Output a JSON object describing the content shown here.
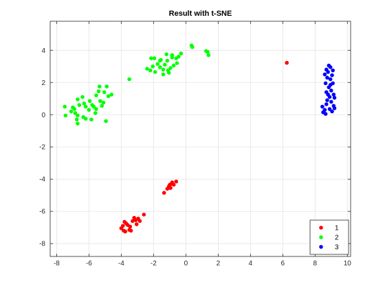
{
  "chart_data": {
    "type": "scatter",
    "title": "Result with t-SNE",
    "xlabel": "",
    "ylabel": "",
    "xlim": [
      -8.4,
      10.2
    ],
    "ylim": [
      -8.8,
      5.8
    ],
    "xticks": [
      -8,
      -6,
      -4,
      -2,
      0,
      2,
      4,
      6,
      8,
      10
    ],
    "yticks": [
      -8,
      -6,
      -4,
      -2,
      0,
      2,
      4
    ],
    "grid": true,
    "legend_position": "bottom-right",
    "series": [
      {
        "name": "1",
        "color": "#ff0000",
        "points": [
          [
            6.25,
            3.22
          ],
          [
            -1.35,
            -4.85
          ],
          [
            -1.15,
            -4.6
          ],
          [
            -1.05,
            -4.45
          ],
          [
            -0.95,
            -4.55
          ],
          [
            -0.9,
            -4.3
          ],
          [
            -0.85,
            -4.2
          ],
          [
            -0.75,
            -4.35
          ],
          [
            -0.6,
            -4.15
          ],
          [
            -1.0,
            -4.35
          ],
          [
            -2.6,
            -6.2
          ],
          [
            -2.95,
            -6.45
          ],
          [
            -3.1,
            -6.55
          ],
          [
            -3.2,
            -6.4
          ],
          [
            -3.3,
            -6.6
          ],
          [
            -3.05,
            -6.8
          ],
          [
            -3.45,
            -6.95
          ],
          [
            -3.5,
            -7.15
          ],
          [
            -3.4,
            -7.2
          ],
          [
            -3.7,
            -6.75
          ],
          [
            -3.8,
            -6.65
          ],
          [
            -3.9,
            -6.9
          ],
          [
            -4.0,
            -7.05
          ],
          [
            -3.85,
            -7.2
          ],
          [
            -3.75,
            -7.25
          ],
          [
            -3.6,
            -6.85
          ],
          [
            -2.85,
            -6.6
          ]
        ]
      },
      {
        "name": "2",
        "color": "#00ff00",
        "points": [
          [
            -7.5,
            0.5
          ],
          [
            -7.45,
            -0.05
          ],
          [
            -7.1,
            0.2
          ],
          [
            -7.0,
            0.45
          ],
          [
            -6.9,
            0.35
          ],
          [
            -6.85,
            0.1
          ],
          [
            -6.7,
            -0.05
          ],
          [
            -6.75,
            -0.3
          ],
          [
            -6.7,
            -0.55
          ],
          [
            -6.6,
            0.6
          ],
          [
            -6.7,
            0.95
          ],
          [
            -6.4,
            1.1
          ],
          [
            -6.3,
            0.7
          ],
          [
            -6.2,
            0.5
          ],
          [
            -6.35,
            -0.15
          ],
          [
            -6.2,
            -0.25
          ],
          [
            -6.0,
            0.3
          ],
          [
            -5.95,
            0.85
          ],
          [
            -5.85,
            -0.3
          ],
          [
            -5.8,
            0.6
          ],
          [
            -5.7,
            0.5
          ],
          [
            -5.6,
            0.1
          ],
          [
            -5.55,
            0.35
          ],
          [
            -5.55,
            1.2
          ],
          [
            -5.4,
            1.45
          ],
          [
            -5.35,
            1.75
          ],
          [
            -5.3,
            0.85
          ],
          [
            -5.2,
            0.55
          ],
          [
            -5.1,
            0.75
          ],
          [
            -5.05,
            1.4
          ],
          [
            -4.9,
            1.75
          ],
          [
            -4.95,
            -0.4
          ],
          [
            -4.8,
            1.15
          ],
          [
            -4.6,
            1.25
          ],
          [
            -3.5,
            2.2
          ],
          [
            -2.4,
            2.85
          ],
          [
            -2.2,
            2.75
          ],
          [
            -2.05,
            3.0
          ],
          [
            -2.15,
            3.5
          ],
          [
            -1.95,
            3.5
          ],
          [
            -1.9,
            2.65
          ],
          [
            -1.75,
            3.15
          ],
          [
            -1.6,
            2.95
          ],
          [
            -1.55,
            3.4
          ],
          [
            -1.4,
            2.5
          ],
          [
            -1.4,
            2.8
          ],
          [
            -1.3,
            3.1
          ],
          [
            -1.2,
            3.75
          ],
          [
            -1.15,
            3.35
          ],
          [
            -1.05,
            2.6
          ],
          [
            -0.95,
            2.9
          ],
          [
            -0.85,
            3.7
          ],
          [
            -0.75,
            3.05
          ],
          [
            -0.6,
            3.5
          ],
          [
            -0.55,
            3.2
          ],
          [
            -0.45,
            3.6
          ],
          [
            -0.3,
            3.8
          ],
          [
            -0.85,
            3.55
          ],
          [
            -1.1,
            2.75
          ],
          [
            -1.6,
            3.35
          ],
          [
            0.35,
            4.3
          ],
          [
            0.4,
            4.2
          ],
          [
            1.25,
            3.95
          ],
          [
            1.35,
            3.9
          ],
          [
            1.4,
            3.7
          ]
        ]
      },
      {
        "name": "3",
        "color": "#0000ff",
        "points": [
          [
            8.45,
            0.5
          ],
          [
            8.5,
            0.15
          ],
          [
            8.6,
            0.3
          ],
          [
            8.65,
            0.05
          ],
          [
            8.6,
            2.5
          ],
          [
            8.7,
            2.8
          ],
          [
            8.65,
            1.95
          ],
          [
            8.7,
            1.4
          ],
          [
            8.75,
            0.9
          ],
          [
            8.7,
            0.65
          ],
          [
            8.8,
            2.65
          ],
          [
            8.85,
            3.05
          ],
          [
            8.85,
            1.7
          ],
          [
            8.9,
            1.1
          ],
          [
            8.9,
            0.35
          ],
          [
            8.95,
            2.95
          ],
          [
            8.95,
            2.2
          ],
          [
            9.0,
            1.5
          ],
          [
            9.0,
            0.8
          ],
          [
            9.05,
            0.2
          ],
          [
            9.1,
            2.75
          ],
          [
            9.1,
            1.95
          ],
          [
            9.15,
            1.25
          ],
          [
            9.15,
            0.55
          ],
          [
            9.2,
            1.05
          ],
          [
            9.2,
            0.4
          ],
          [
            8.8,
            1.25
          ],
          [
            8.95,
            1.85
          ],
          [
            8.75,
            2.3
          ],
          [
            9.05,
            2.45
          ]
        ]
      }
    ]
  }
}
